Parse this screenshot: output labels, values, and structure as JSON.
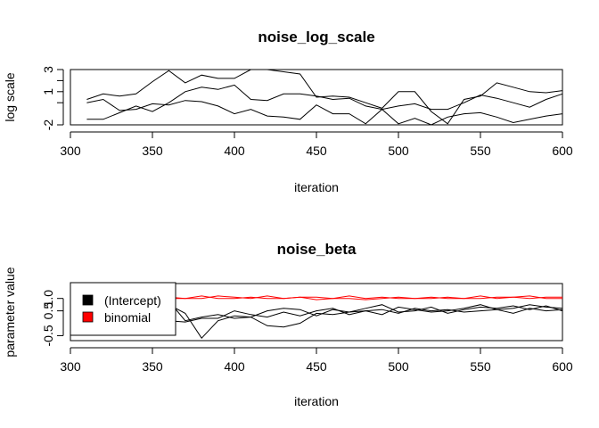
{
  "chart_data": [
    {
      "type": "line",
      "title": "noise_log_scale",
      "xlabel": "iteration",
      "ylabel": "log scale",
      "xlim": [
        300,
        600
      ],
      "ylim": [
        -2,
        3
      ],
      "xticks": [
        300,
        350,
        400,
        450,
        500,
        550,
        600
      ],
      "yticks": [
        -2,
        1,
        3
      ],
      "ytick_labels": [
        "-2",
        "1",
        "3"
      ],
      "extra_yticks": [
        0,
        2
      ],
      "x": [
        310,
        320,
        330,
        340,
        350,
        360,
        370,
        380,
        390,
        400,
        410,
        420,
        430,
        440,
        450,
        460,
        470,
        480,
        490,
        500,
        510,
        520,
        530,
        540,
        550,
        560,
        570,
        580,
        590,
        600
      ],
      "series": [
        {
          "color": "#000000",
          "values": [
            0.3,
            0.8,
            0.6,
            0.8,
            1.9,
            2.9,
            1.8,
            2.5,
            2.2,
            2.2,
            3.0,
            3.0,
            2.8,
            2.6,
            0.5,
            0.6,
            0.5,
            0.0,
            -0.5,
            1.0,
            1.0,
            -0.8,
            -1.9,
            0.3,
            0.6,
            1.8,
            1.4,
            1.0,
            0.9,
            1.1
          ]
        },
        {
          "color": "#000000",
          "values": [
            -1.5,
            -1.5,
            -0.9,
            -0.3,
            -0.8,
            0.0,
            1.0,
            1.4,
            1.2,
            1.6,
            0.3,
            0.2,
            0.8,
            0.8,
            0.6,
            0.3,
            0.4,
            -0.3,
            -0.6,
            -0.3,
            -0.1,
            -0.6,
            -0.6,
            0.0,
            0.7,
            0.4,
            0.0,
            -0.4,
            0.3,
            0.8
          ]
        },
        {
          "color": "#000000",
          "values": [
            0.0,
            0.3,
            -0.7,
            -0.6,
            -0.1,
            -0.2,
            0.2,
            0.1,
            -0.3,
            -1.0,
            -0.6,
            -1.2,
            -1.3,
            -1.5,
            -0.2,
            -1.0,
            -1.0,
            -1.9,
            -0.6,
            -1.9,
            -1.4,
            -2.0,
            -1.3,
            -1.0,
            -0.9,
            -1.3,
            -1.8,
            -1.5,
            -1.2,
            -1.0
          ]
        }
      ]
    },
    {
      "type": "line",
      "title": "noise_beta",
      "xlabel": "iteration",
      "ylabel": "parameter value",
      "xlim": [
        300,
        600
      ],
      "ylim": [
        -0.7,
        1.6
      ],
      "xticks": [
        300,
        350,
        400,
        450,
        500,
        550,
        600
      ],
      "yticks": [
        -0.5,
        0.5,
        1.0
      ],
      "ytick_labels": [
        "-0.5",
        "0.5",
        "1.0"
      ],
      "legend": {
        "placement": "left",
        "entries": [
          {
            "label": "(Intercept)",
            "color": "#000000"
          },
          {
            "label": "binomial",
            "color": "#ff0000"
          }
        ]
      },
      "x": [
        310,
        320,
        330,
        340,
        350,
        360,
        370,
        380,
        390,
        400,
        410,
        420,
        430,
        440,
        450,
        460,
        470,
        480,
        490,
        500,
        510,
        520,
        530,
        540,
        550,
        560,
        570,
        580,
        590,
        600
      ],
      "series": [
        {
          "color": "#ff0000",
          "values": [
            1.0,
            1.0,
            1.05,
            1.0,
            1.0,
            1.05,
            1.0,
            1.0,
            1.1,
            1.05,
            1.0,
            1.1,
            1.0,
            1.05,
            0.95,
            1.0,
            1.0,
            0.95,
            1.0,
            1.05,
            1.0,
            1.05,
            1.0,
            1.0,
            1.1,
            1.0,
            1.05,
            1.1,
            1.0,
            1.0
          ]
        },
        {
          "color": "#ff0000",
          "values": [
            0.95,
            1.05,
            1.0,
            1.0,
            1.05,
            1.0,
            1.0,
            1.1,
            1.0,
            1.0,
            1.05,
            1.0,
            1.0,
            1.05,
            1.05,
            1.0,
            1.1,
            1.0,
            1.05,
            1.0,
            1.0,
            1.0,
            1.05,
            1.0,
            1.0,
            1.05,
            1.05,
            1.0,
            1.05,
            1.05
          ]
        },
        {
          "color": "#000000",
          "values": [
            0.6,
            0.7,
            0.65,
            0.8,
            0.85,
            0.75,
            0.4,
            -0.6,
            0.1,
            0.3,
            0.25,
            -0.1,
            -0.15,
            0.0,
            0.4,
            0.35,
            0.45,
            0.5,
            0.35,
            0.65,
            0.55,
            0.45,
            0.5,
            0.6,
            0.75,
            0.55,
            0.6,
            0.75,
            0.65,
            0.6
          ]
        },
        {
          "color": "#000000",
          "values": [
            0.5,
            0.2,
            0.3,
            0.4,
            0.55,
            0.9,
            0.1,
            0.25,
            0.35,
            0.2,
            0.25,
            0.5,
            0.6,
            0.55,
            0.3,
            0.55,
            0.45,
            0.6,
            0.75,
            0.45,
            0.5,
            0.65,
            0.4,
            0.55,
            0.65,
            0.6,
            0.7,
            0.55,
            0.7,
            0.5
          ]
        },
        {
          "color": "#000000",
          "values": [
            0.3,
            0.4,
            0.1,
            0.0,
            0.3,
            0.1,
            0.05,
            0.2,
            0.2,
            0.5,
            0.35,
            0.25,
            0.45,
            0.3,
            0.5,
            0.6,
            0.35,
            0.5,
            0.55,
            0.4,
            0.6,
            0.5,
            0.55,
            0.45,
            0.5,
            0.55,
            0.4,
            0.6,
            0.5,
            0.55
          ]
        }
      ]
    }
  ]
}
